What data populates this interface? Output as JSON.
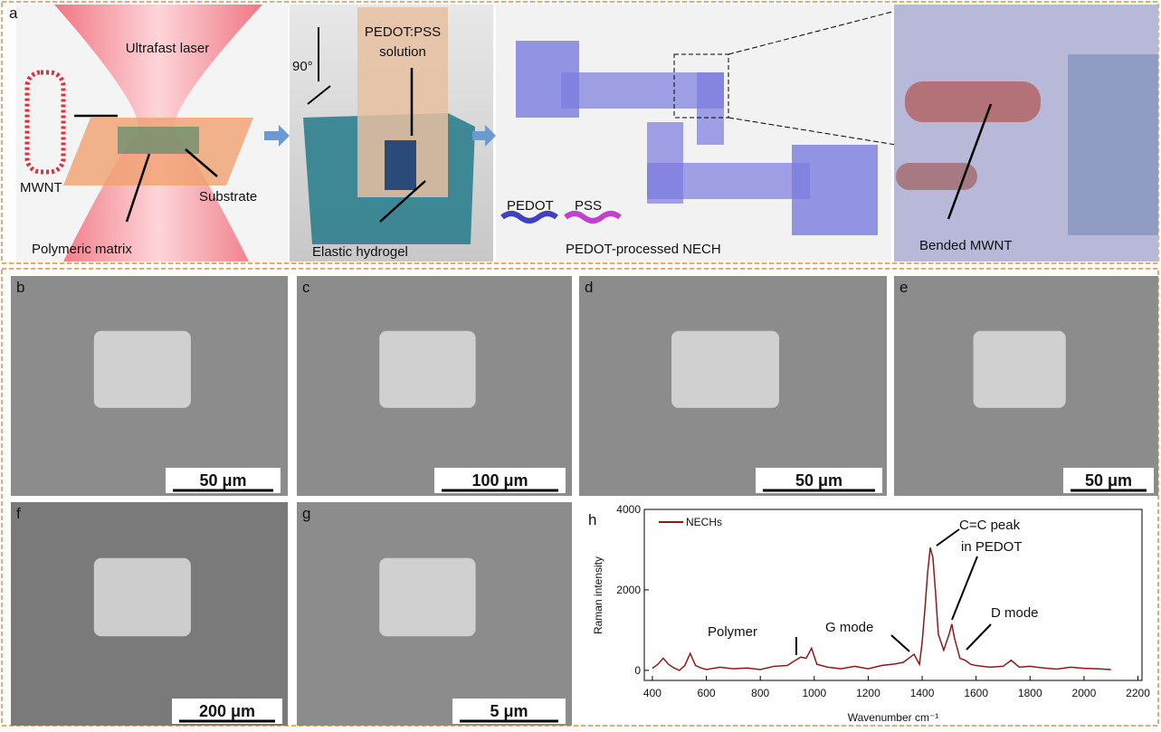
{
  "panel_a": {
    "label": "a",
    "ultrafast_laser": "Ultrafast laser",
    "mwnt": "MWNT",
    "substrate": "Substrate",
    "polymeric_matrix": "Polymeric matrix",
    "angle": "90°",
    "solution_line1": "PEDOT:PSS",
    "solution_line2": "solution",
    "elastic_hydrogel": "Elastic hydrogel",
    "pedot": "PEDOT",
    "pss": "PSS",
    "nech": "PEDOT-processed NECH",
    "bended_mwnt": "Bended MWNT"
  },
  "panels": [
    {
      "label": "b",
      "scale_bar": "50 μm"
    },
    {
      "label": "c",
      "scale_bar": "100 μm"
    },
    {
      "label": "d",
      "scale_bar": "50 μm"
    },
    {
      "label": "e",
      "scale_bar": "50 μm"
    },
    {
      "label": "f",
      "scale_bar": "200 μm"
    },
    {
      "label": "g",
      "scale_bar": "5 μm"
    }
  ],
  "chart_data": {
    "type": "line",
    "label": "h",
    "x_label": "Wavenumber cm⁻¹",
    "y_label": "Raman intensity",
    "x": [
      400,
      420,
      440,
      460,
      480,
      500,
      520,
      540,
      560,
      580,
      600,
      650,
      700,
      750,
      800,
      850,
      900,
      930,
      950,
      970,
      990,
      1010,
      1050,
      1100,
      1150,
      1200,
      1250,
      1300,
      1330,
      1350,
      1370,
      1390,
      1400,
      1410,
      1420,
      1430,
      1440,
      1450,
      1460,
      1480,
      1500,
      1510,
      1520,
      1540,
      1560,
      1580,
      1600,
      1650,
      1700,
      1730,
      1760,
      1800,
      1850,
      1900,
      1950,
      2000,
      2050,
      2100
    ],
    "series": [
      {
        "name": "NECHs",
        "color": "#8b1a1a",
        "values": [
          50,
          150,
          300,
          150,
          60,
          0,
          120,
          420,
          120,
          60,
          20,
          80,
          40,
          60,
          20,
          100,
          120,
          250,
          330,
          300,
          550,
          150,
          80,
          40,
          100,
          40,
          120,
          160,
          200,
          300,
          400,
          150,
          700,
          1500,
          2400,
          3050,
          2800,
          1900,
          900,
          500,
          900,
          1150,
          800,
          300,
          250,
          150,
          120,
          80,
          100,
          250,
          80,
          100,
          60,
          30,
          80,
          50,
          40,
          20
        ]
      }
    ],
    "annotations": [
      "Polymer",
      "G mode",
      "C=C peak",
      "in PEDOT",
      "D mode"
    ],
    "xlim": [
      370,
      2215
    ],
    "ylim": [
      -250,
      4000
    ],
    "xticks": [
      400,
      600,
      800,
      1000,
      1200,
      1400,
      1600,
      1800,
      2000,
      2200
    ],
    "yticks": [
      0,
      2000,
      4000
    ]
  }
}
